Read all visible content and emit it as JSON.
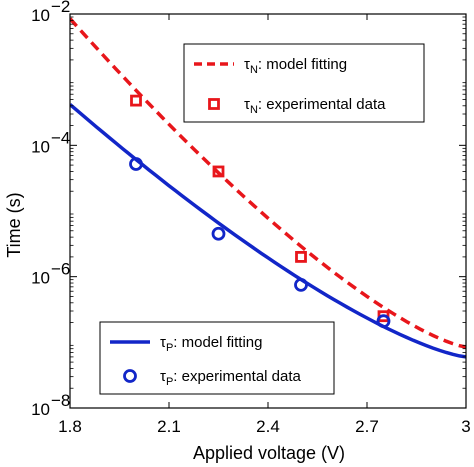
{
  "chart_data": {
    "type": "line",
    "title": "",
    "xlabel": "Applied voltage (V)",
    "ylabel": "Time (s)",
    "x_scale": "linear",
    "y_scale": "log",
    "xlim": [
      1.8,
      3.0
    ],
    "ylim": [
      1e-08,
      0.01
    ],
    "x_ticks": [
      1.8,
      2.1,
      2.4,
      2.7,
      3.0
    ],
    "x_tick_labels": [
      "1.8",
      "2.1",
      "2.4",
      "2.7",
      "3"
    ],
    "y_ticks": [
      1e-08,
      1e-06,
      0.0001,
      0.01
    ],
    "y_tick_labels": [
      {
        "base": "10",
        "exp": "−8"
      },
      {
        "base": "10",
        "exp": "−6"
      },
      {
        "base": "10",
        "exp": "−4"
      },
      {
        "base": "10",
        "exp": "−2"
      }
    ],
    "grid": false,
    "series": [
      {
        "legend_symbol": "τ",
        "legend_sub": "N",
        "legend_text": ": model fitting",
        "kind": "line",
        "style": "dashed",
        "color": "#e8161b",
        "x": [
          1.8,
          3.0
        ],
        "y": [
          0.0085,
          8.5e-08
        ]
      },
      {
        "legend_symbol": "τ",
        "legend_sub": "N",
        "legend_text": ": experimental data",
        "kind": "scatter",
        "marker": "square",
        "color": "#e8161b",
        "x": [
          2.0,
          2.25,
          2.5,
          2.75
        ],
        "y": [
          0.00048,
          4e-05,
          2e-06,
          2.5e-07
        ]
      },
      {
        "legend_symbol": "τ",
        "legend_sub": "P",
        "legend_text": ": model fitting",
        "kind": "line",
        "style": "solid",
        "color": "#1226c8",
        "x": [
          1.8,
          3.0
        ],
        "y": [
          0.00042,
          6e-08
        ]
      },
      {
        "legend_symbol": "τ",
        "legend_sub": "P",
        "legend_text": ": experimental data",
        "kind": "scatter",
        "marker": "circle",
        "color": "#1226c8",
        "x": [
          2.0,
          2.25,
          2.5,
          2.75
        ],
        "y": [
          5.2e-05,
          4.5e-06,
          7.5e-07,
          2.1e-07
        ]
      }
    ],
    "legends": [
      {
        "placement": "top-right",
        "series": [
          0,
          1
        ]
      },
      {
        "placement": "bottom-left",
        "series": [
          2,
          3
        ]
      }
    ]
  }
}
